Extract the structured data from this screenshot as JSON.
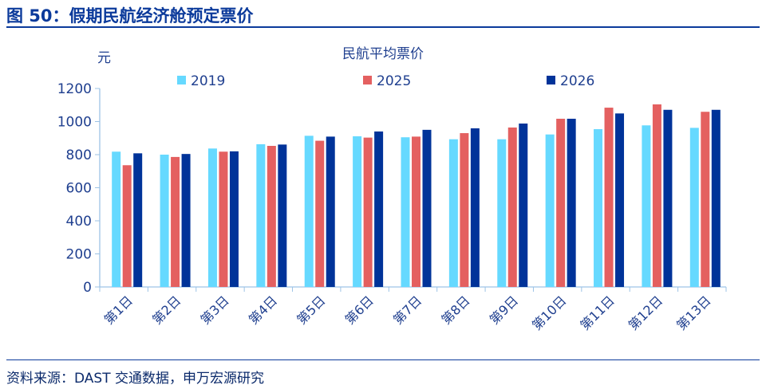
{
  "header": {
    "title": "图 50：假期民航经济舱预定票价"
  },
  "footer": {
    "source": "资料来源：DAST 交通数据，申万宏源研究"
  },
  "chart_data": {
    "type": "bar",
    "title": "民航平均票价",
    "ylabel": "元",
    "xlabel": "",
    "ylim": [
      0,
      1200
    ],
    "yticks": [
      0,
      200,
      400,
      600,
      800,
      1000,
      1200
    ],
    "grid": false,
    "legend": "top",
    "categories": [
      "第1日",
      "第2日",
      "第3日",
      "第4日",
      "第5日",
      "第6日",
      "第7日",
      "第8日",
      "第9日",
      "第10日",
      "第11日",
      "第12日",
      "第13日"
    ],
    "series": [
      {
        "name": "2019",
        "color": "#66D9FF",
        "values": [
          818,
          800,
          837,
          863,
          914,
          911,
          905,
          893,
          893,
          922,
          954,
          977,
          962
        ]
      },
      {
        "name": "2025",
        "color": "#E46060",
        "values": [
          736,
          786,
          818,
          853,
          884,
          903,
          909,
          930,
          964,
          1017,
          1084,
          1104,
          1059
        ]
      },
      {
        "name": "2026",
        "color": "#003399",
        "values": [
          808,
          804,
          820,
          861,
          909,
          940,
          950,
          959,
          988,
          1017,
          1049,
          1071,
          1071
        ]
      }
    ]
  }
}
